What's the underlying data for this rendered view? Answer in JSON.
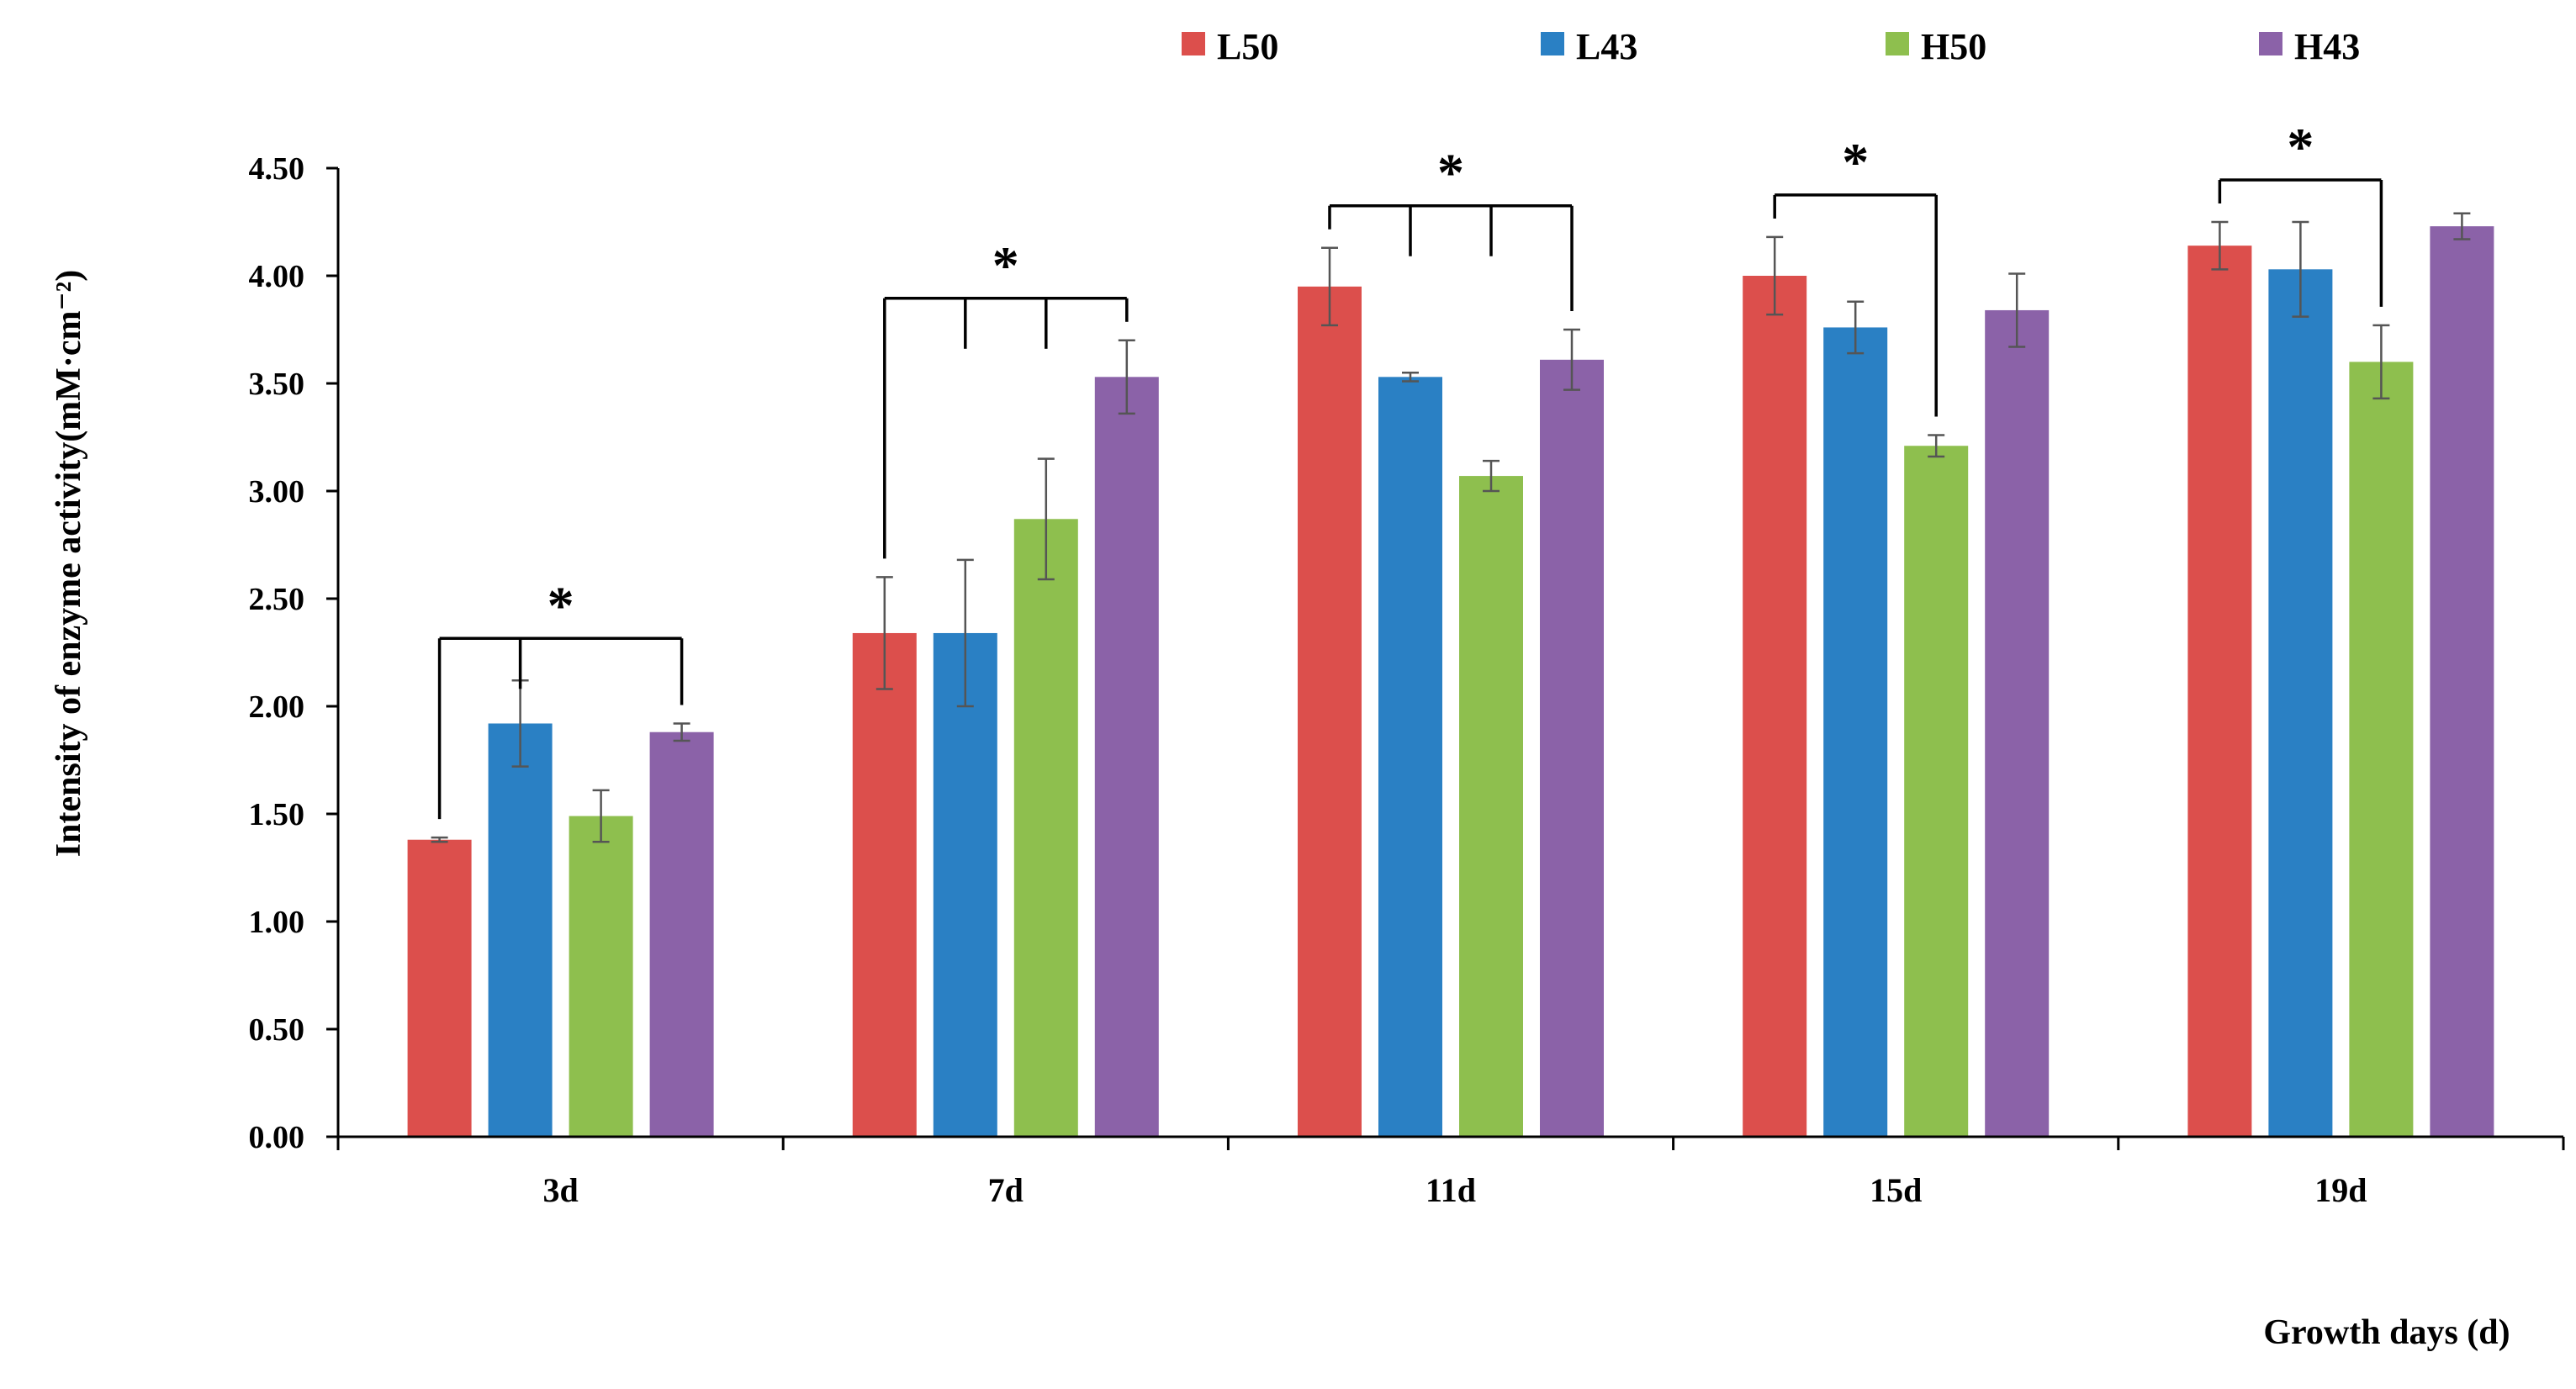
{
  "chart_data": {
    "type": "bar",
    "title": "",
    "xlabel": "Growth days (d)",
    "ylabel": "Intensity of enzyme activity(mM·cm⁻²)",
    "ylim": [
      0,
      4.5
    ],
    "yticks": [
      "0.00",
      "0.50",
      "1.00",
      "1.50",
      "2.00",
      "2.50",
      "3.00",
      "3.50",
      "4.00",
      "4.50"
    ],
    "categories": [
      "3d",
      "7d",
      "11d",
      "15d",
      "19d"
    ],
    "series": [
      {
        "name": "L50",
        "color": "#dc4f4c",
        "values": [
          1.38,
          2.34,
          3.95,
          4.0,
          4.14
        ],
        "errors": [
          0.01,
          0.26,
          0.18,
          0.18,
          0.11
        ]
      },
      {
        "name": "L43",
        "color": "#2a80c4",
        "values": [
          1.92,
          2.34,
          3.53,
          3.76,
          4.03
        ],
        "errors": [
          0.2,
          0.34,
          0.02,
          0.12,
          0.22
        ]
      },
      {
        "name": "H50",
        "color": "#8ebf4e",
        "values": [
          1.49,
          2.87,
          3.07,
          3.21,
          3.6
        ],
        "errors": [
          0.12,
          0.28,
          0.07,
          0.05,
          0.17
        ]
      },
      {
        "name": "H43",
        "color": "#8b62a8",
        "values": [
          1.88,
          3.53,
          3.61,
          3.84,
          4.23
        ],
        "errors": [
          0.04,
          0.17,
          0.14,
          0.17,
          0.06
        ]
      }
    ],
    "legend_position": "top",
    "annotations": [
      {
        "category": "3d",
        "label": "*",
        "bars": [
          "L50",
          "L43",
          "H43"
        ]
      },
      {
        "category": "7d",
        "label": "*",
        "bars": [
          "L50",
          "L43",
          "H50",
          "H43"
        ]
      },
      {
        "category": "11d",
        "label": "*",
        "bars": [
          "L50",
          "L43",
          "H50",
          "H43"
        ]
      },
      {
        "category": "15d",
        "label": "*",
        "bars": [
          "L50",
          "H50"
        ]
      },
      {
        "category": "19d",
        "label": "*",
        "bars": [
          "L50",
          "H50"
        ]
      }
    ]
  }
}
